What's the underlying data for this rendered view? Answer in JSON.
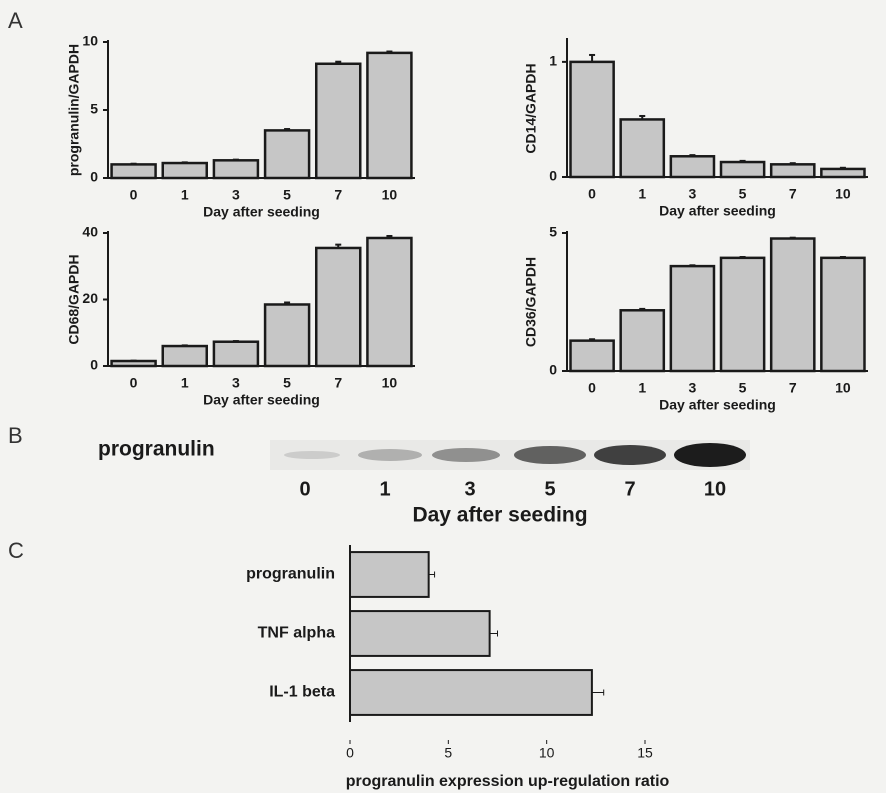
{
  "panel_labels": [
    "A",
    "B",
    "C"
  ],
  "blot": {
    "label": "progranulin",
    "lanes": [
      "0",
      "1",
      "3",
      "5",
      "7",
      "10"
    ],
    "xlabel": "Day after seeding"
  },
  "chart_data": [
    {
      "type": "bar",
      "ylabel": "progranulin/GAPDH",
      "xlabel": "Day after seeding",
      "categories": [
        "0",
        "1",
        "3",
        "5",
        "7",
        "10"
      ],
      "values": [
        1.0,
        1.1,
        1.3,
        3.5,
        8.4,
        9.2
      ],
      "errors": [
        0.05,
        0.05,
        0.05,
        0.1,
        0.15,
        0.1
      ],
      "ylim": [
        0,
        10
      ],
      "yticks": [
        0,
        5,
        10
      ],
      "color": "#c6c6c6"
    },
    {
      "type": "bar",
      "ylabel": "CD14/GAPDH",
      "xlabel": "Day after seeding",
      "categories": [
        "0",
        "1",
        "3",
        "5",
        "7",
        "10"
      ],
      "values": [
        1.0,
        0.5,
        0.18,
        0.13,
        0.11,
        0.07
      ],
      "errors": [
        0.06,
        0.03,
        0.01,
        0.01,
        0.01,
        0.01
      ],
      "ylim": [
        0,
        1.19
      ],
      "yticks": [
        0,
        1
      ],
      "color": "#c6c6c6"
    },
    {
      "type": "bar",
      "ylabel": "CD68/GAPDH",
      "xlabel": "Day after seeding",
      "categories": [
        "0",
        "1",
        "3",
        "5",
        "7",
        "10"
      ],
      "values": [
        1.5,
        6.0,
        7.3,
        18.5,
        35.5,
        38.5
      ],
      "errors": [
        0.1,
        0.2,
        0.2,
        0.6,
        1.0,
        0.6
      ],
      "ylim": [
        0,
        40
      ],
      "yticks": [
        0,
        20,
        40
      ],
      "color": "#c6c6c6"
    },
    {
      "type": "bar",
      "ylabel": "CD36/GAPDH",
      "xlabel": "Day after seeding",
      "categories": [
        "0",
        "1",
        "3",
        "5",
        "7",
        "10"
      ],
      "values": [
        1.1,
        2.2,
        3.8,
        4.1,
        4.8,
        4.1
      ],
      "errors": [
        0.05,
        0.05,
        0.03,
        0.03,
        0.03,
        0.03
      ],
      "ylim": [
        0,
        5
      ],
      "yticks": [
        0,
        5
      ],
      "color": "#c6c6c6"
    },
    {
      "type": "hbar",
      "xlabel": "progranulin expression up-regulation ratio",
      "categories": [
        "progranulin",
        "TNF alpha",
        "IL-1 beta"
      ],
      "values": [
        4.0,
        7.1,
        12.3
      ],
      "errors": [
        0.3,
        0.4,
        0.6
      ],
      "xlim": [
        0,
        15
      ],
      "xticks": [
        0,
        5,
        10,
        15
      ],
      "color": "#c6c6c6"
    }
  ]
}
